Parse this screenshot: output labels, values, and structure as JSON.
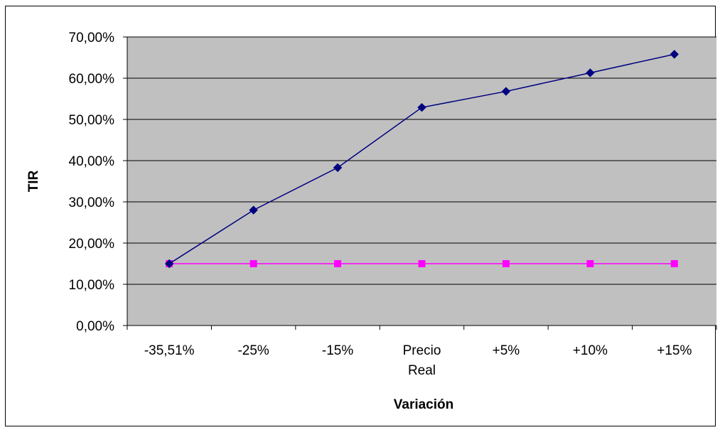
{
  "chart_data": {
    "type": "line",
    "title": "",
    "xlabel": "Variación",
    "ylabel": "TIR",
    "categories": [
      "-35,51%",
      "-25%",
      "-15%",
      "Precio Real",
      "+5%",
      "+10%",
      "+15%"
    ],
    "category_lines": [
      [
        "-35,51%"
      ],
      [
        "-25%"
      ],
      [
        "-15%"
      ],
      [
        "Precio",
        "Real"
      ],
      [
        "+5%"
      ],
      [
        "+10%"
      ],
      [
        "+15%"
      ]
    ],
    "y_ticks": [
      "0,00%",
      "10,00%",
      "20,00%",
      "30,00%",
      "40,00%",
      "50,00%",
      "60,00%",
      "70,00%"
    ],
    "y_tick_values": [
      0,
      10,
      20,
      30,
      40,
      50,
      60,
      70
    ],
    "ylim": [
      0,
      70
    ],
    "grid": true,
    "legend": "none",
    "series": [
      {
        "values": [
          15,
          28,
          38.3,
          52.9,
          56.8,
          61.3,
          65.8
        ],
        "color": "#000080",
        "marker": "diamond"
      },
      {
        "values": [
          15,
          15,
          15,
          15,
          15,
          15,
          15
        ],
        "color": "#FF00FF",
        "marker": "square"
      }
    ],
    "plot_area_color": "#C0C0C0"
  }
}
